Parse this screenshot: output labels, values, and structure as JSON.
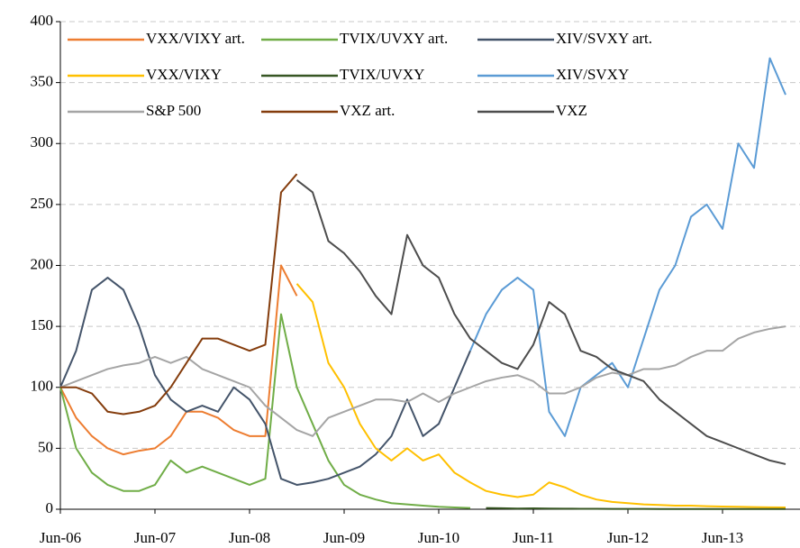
{
  "chart_data": {
    "type": "line",
    "categories": [
      "Jun-06",
      null,
      null,
      null,
      null,
      null,
      "Jun-07",
      null,
      null,
      null,
      null,
      null,
      "Jun-08",
      null,
      null,
      null,
      null,
      null,
      "Jun-09",
      null,
      null,
      null,
      null,
      null,
      "Jun-10",
      null,
      null,
      null,
      null,
      null,
      "Jun-11",
      null,
      null,
      null,
      null,
      null,
      "Jun-12",
      null,
      null,
      null,
      null,
      null,
      "Jun-13",
      null,
      null,
      null,
      null
    ],
    "series": [
      {
        "name": "VXX/VIXY art.",
        "color": "#ed7d31",
        "values": [
          100,
          75,
          60,
          50,
          45,
          48,
          50,
          60,
          80,
          80,
          75,
          65,
          60,
          60,
          200,
          175,
          null,
          null,
          null,
          null,
          null,
          null,
          null,
          null,
          null,
          null,
          null,
          null,
          null,
          null,
          null,
          null,
          null,
          null,
          null,
          null,
          null,
          null,
          null,
          null,
          null,
          null,
          null,
          null,
          null,
          null,
          null
        ]
      },
      {
        "name": "TVIX/UVXY art.",
        "color": "#70ad47",
        "values": [
          100,
          50,
          30,
          20,
          15,
          15,
          20,
          40,
          30,
          35,
          30,
          25,
          20,
          25,
          160,
          100,
          70,
          40,
          20,
          12,
          8,
          5,
          4,
          3,
          2,
          1.5,
          1,
          null,
          null,
          null,
          null,
          null,
          null,
          null,
          null,
          null,
          null,
          null,
          null,
          null,
          null,
          null,
          null,
          null,
          null,
          null,
          null
        ]
      },
      {
        "name": "XIV/SVXY art.",
        "color": "#44546a",
        "values": [
          100,
          130,
          180,
          190,
          180,
          150,
          110,
          90,
          80,
          85,
          80,
          100,
          90,
          70,
          25,
          20,
          22,
          25,
          30,
          35,
          45,
          60,
          90,
          60,
          70,
          100,
          130,
          null,
          null,
          null,
          null,
          null,
          null,
          null,
          null,
          null,
          null,
          null,
          null,
          null,
          null,
          null,
          null,
          null,
          null,
          null,
          null
        ]
      },
      {
        "name": "VXX/VIXY",
        "color": "#ffc000",
        "values": [
          null,
          null,
          null,
          null,
          null,
          null,
          null,
          null,
          null,
          null,
          null,
          null,
          null,
          null,
          null,
          185,
          170,
          120,
          100,
          70,
          50,
          40,
          50,
          40,
          45,
          30,
          22,
          15,
          12,
          10,
          12,
          22,
          18,
          12,
          8,
          6,
          5,
          4,
          3.5,
          3,
          3,
          2.5,
          2.2,
          2,
          1.8,
          1.6,
          1.5
        ]
      },
      {
        "name": "TVIX/UVXY",
        "color": "#375623",
        "values": [
          null,
          null,
          null,
          null,
          null,
          null,
          null,
          null,
          null,
          null,
          null,
          null,
          null,
          null,
          null,
          null,
          null,
          null,
          null,
          null,
          null,
          null,
          null,
          null,
          null,
          null,
          null,
          1,
          0.8,
          0.6,
          0.7,
          0.6,
          0.5,
          0.4,
          0.4,
          0.3,
          0.3,
          0.3,
          0.2,
          0.2,
          0.2,
          0.2,
          0.2,
          0.2,
          0.2,
          0.2,
          0.2
        ]
      },
      {
        "name": "XIV/SVXY",
        "color": "#5b9bd5",
        "values": [
          null,
          null,
          null,
          null,
          null,
          null,
          null,
          null,
          null,
          null,
          null,
          null,
          null,
          null,
          null,
          null,
          null,
          null,
          null,
          null,
          null,
          null,
          null,
          null,
          null,
          null,
          130,
          160,
          180,
          190,
          180,
          80,
          60,
          100,
          110,
          120,
          100,
          140,
          180,
          200,
          240,
          250,
          230,
          300,
          280,
          370,
          340
        ]
      },
      {
        "name": "S&P 500",
        "color": "#a5a5a5",
        "values": [
          100,
          105,
          110,
          115,
          118,
          120,
          125,
          120,
          125,
          115,
          110,
          105,
          100,
          85,
          75,
          65,
          60,
          75,
          80,
          85,
          90,
          90,
          88,
          95,
          88,
          95,
          100,
          105,
          108,
          110,
          105,
          95,
          95,
          100,
          108,
          112,
          110,
          115,
          115,
          118,
          125,
          130,
          130,
          140,
          145,
          148,
          150
        ]
      },
      {
        "name": "VXZ art.",
        "color": "#843c0c",
        "values": [
          100,
          100,
          95,
          80,
          78,
          80,
          85,
          100,
          120,
          140,
          140,
          135,
          130,
          135,
          260,
          275,
          null,
          null,
          null,
          null,
          null,
          null,
          null,
          null,
          null,
          null,
          null,
          null,
          null,
          null,
          null,
          null,
          null,
          null,
          null,
          null,
          null,
          null,
          null,
          null,
          null,
          null,
          null,
          null,
          null,
          null,
          null
        ]
      },
      {
        "name": "VXZ",
        "color": "#4d4d4d",
        "values": [
          null,
          null,
          null,
          null,
          null,
          null,
          null,
          null,
          null,
          null,
          null,
          null,
          null,
          null,
          null,
          270,
          260,
          220,
          210,
          195,
          175,
          160,
          225,
          200,
          190,
          160,
          140,
          130,
          120,
          115,
          135,
          170,
          160,
          130,
          125,
          115,
          110,
          105,
          90,
          80,
          70,
          60,
          55,
          50,
          45,
          40,
          37
        ]
      }
    ],
    "ylim": [
      0,
      400
    ],
    "yticks": [
      0,
      50,
      100,
      150,
      200,
      250,
      300,
      350,
      400
    ],
    "grid": true,
    "legend": "upper left"
  }
}
